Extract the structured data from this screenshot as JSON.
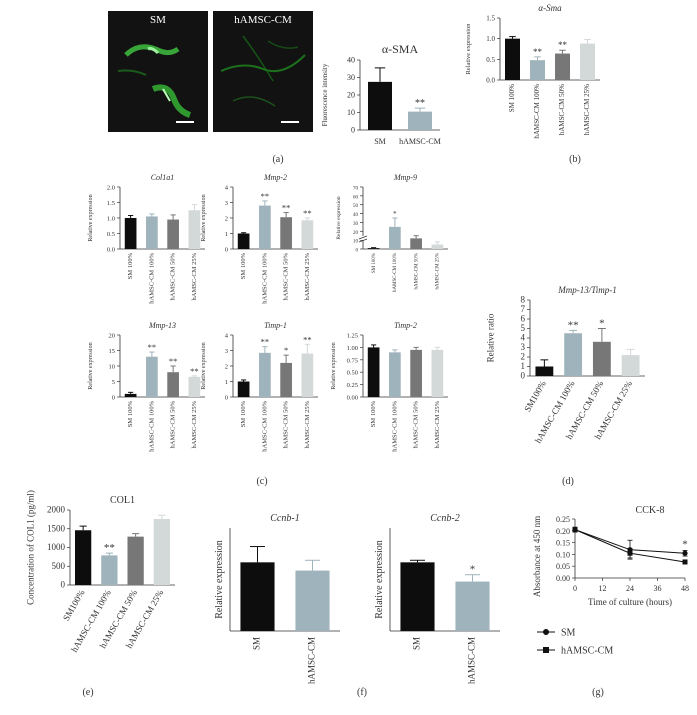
{
  "panel_letters": [
    "(a)",
    "(b)",
    "(c)",
    "(d)",
    "(e)",
    "(f)",
    "(g)"
  ],
  "micrographs": [
    {
      "label": "SM",
      "scale_bar": true
    },
    {
      "label": "hAMSC-CM",
      "scale_bar": true
    }
  ],
  "chart_data": [
    {
      "id": "a",
      "type": "bar",
      "title": "α-SMA",
      "title_style": "plain",
      "categories": [
        "SM",
        "hAMSC-CM"
      ],
      "values": [
        27.5,
        10.5
      ],
      "errors": [
        8,
        2
      ],
      "colors": [
        "#0d0d0d",
        "#9fb3bc"
      ],
      "ylabel": "Fluorescence intensity",
      "ylim": [
        0,
        40
      ],
      "yticks": [
        0,
        10,
        20,
        30,
        40
      ],
      "sig": [
        "",
        "**"
      ],
      "xlabel_rotation": 0
    },
    {
      "id": "b",
      "type": "bar",
      "title": "α-Sma",
      "title_style": "italic",
      "categories": [
        "SM 100%",
        "hAMSC-CM 100%",
        "hAMSC-CM 50%",
        "hAMSC-CM 25%"
      ],
      "values": [
        1.0,
        0.48,
        0.64,
        0.88
      ],
      "errors": [
        0.05,
        0.08,
        0.08,
        0.1
      ],
      "colors": [
        "#0d0d0d",
        "#9fb3bc",
        "#777777",
        "#d3d8d8"
      ],
      "ylabel": "Relative expression",
      "ylim": [
        0,
        1.5
      ],
      "yticks": [
        0.0,
        0.5,
        1.0,
        1.5
      ],
      "sig": [
        "",
        "**",
        "**",
        ""
      ],
      "xlabel_rotation": -90
    },
    {
      "id": "c1",
      "type": "bar",
      "title": "Col1a1",
      "title_style": "italic",
      "categories": [
        "SM 100%",
        "hAMSC-CM 100%",
        "hAMSC-CM 50%",
        "hAMSC-CM 25%"
      ],
      "values": [
        1.0,
        1.05,
        0.95,
        1.25
      ],
      "errors": [
        0.08,
        0.08,
        0.15,
        0.18
      ],
      "colors": [
        "#0d0d0d",
        "#9fb3bc",
        "#777777",
        "#d3d8d8"
      ],
      "ylabel": "Relative expression",
      "ylim": [
        0,
        2.0
      ],
      "yticks": [
        0.0,
        0.5,
        1.0,
        1.5,
        2.0
      ],
      "sig": [
        "",
        "",
        "",
        ""
      ],
      "xlabel_rotation": -90
    },
    {
      "id": "c2",
      "type": "bar",
      "title": "Mmp-2",
      "title_style": "italic",
      "categories": [
        "SM 100%",
        "hAMSC-CM 100%",
        "hAMSC-CM 50%",
        "hAMSC-CM 25%"
      ],
      "values": [
        1.0,
        2.8,
        2.05,
        1.85
      ],
      "errors": [
        0.05,
        0.3,
        0.3,
        0.15
      ],
      "colors": [
        "#0d0d0d",
        "#9fb3bc",
        "#777777",
        "#d3d8d8"
      ],
      "ylabel": "Relative expression",
      "ylim": [
        0,
        4
      ],
      "yticks": [
        0,
        1,
        2,
        3,
        4
      ],
      "sig": [
        "",
        "**",
        "**",
        "**"
      ],
      "xlabel_rotation": -90
    },
    {
      "id": "c3",
      "type": "bar",
      "title": "Mmp-9",
      "title_style": "italic",
      "categories": [
        "SM 100%",
        "hAMSC-CM 100%",
        "hAMSC-CM 50%",
        "hAMSC-CM 25%"
      ],
      "values": [
        1.0,
        25,
        12,
        5
      ],
      "errors": [
        0.5,
        10,
        3,
        3
      ],
      "colors": [
        "#0d0d0d",
        "#9fb3bc",
        "#777777",
        "#d3d8d8"
      ],
      "ylabel": "Relative expression",
      "ylim": [
        0,
        70
      ],
      "yticks": [
        0,
        10,
        20,
        30,
        40,
        50,
        60,
        70
      ],
      "axis_break": true,
      "broken_ytick_labels": [
        "0",
        "1",
        "2"
      ],
      "sig": [
        "",
        "*",
        "",
        ""
      ],
      "xlabel_rotation": -90
    },
    {
      "id": "c4",
      "type": "bar",
      "title": "Mmp-13",
      "title_style": "italic",
      "categories": [
        "SM 100%",
        "hAMSC-CM 100%",
        "hAMSC-CM 50%",
        "hAMSC-CM 25%"
      ],
      "values": [
        1.0,
        13.0,
        8.0,
        6.5
      ],
      "errors": [
        0.5,
        1.5,
        2.0,
        0.3
      ],
      "colors": [
        "#0d0d0d",
        "#9fb3bc",
        "#777777",
        "#d3d8d8"
      ],
      "ylabel": "Relative expression",
      "ylim": [
        0,
        20
      ],
      "yticks": [
        0,
        5,
        10,
        15,
        20
      ],
      "sig": [
        "",
        "**",
        "**",
        "**"
      ],
      "xlabel_rotation": -90
    },
    {
      "id": "c5",
      "type": "bar",
      "title": "Timp-1",
      "title_style": "italic",
      "categories": [
        "SM 100%",
        "hAMSC-CM 100%",
        "hAMSC-CM 50%",
        "hAMSC-CM 25%"
      ],
      "values": [
        1.0,
        2.85,
        2.2,
        2.8
      ],
      "errors": [
        0.1,
        0.4,
        0.5,
        0.6
      ],
      "colors": [
        "#0d0d0d",
        "#9fb3bc",
        "#777777",
        "#d3d8d8"
      ],
      "ylabel": "Relative expression",
      "ylim": [
        0,
        4
      ],
      "yticks": [
        0,
        1,
        2,
        3,
        4
      ],
      "sig": [
        "",
        "**",
        "*",
        "**"
      ],
      "xlabel_rotation": -90
    },
    {
      "id": "c6",
      "type": "bar",
      "title": "Timp-2",
      "title_style": "italic",
      "categories": [
        "SM 100%",
        "hAMSC-CM 100%",
        "hAMSC-CM 50%",
        "hAMSC-CM 25%"
      ],
      "values": [
        1.0,
        0.9,
        0.95,
        0.95
      ],
      "errors": [
        0.05,
        0.05,
        0.05,
        0.05
      ],
      "colors": [
        "#0d0d0d",
        "#9fb3bc",
        "#777777",
        "#d3d8d8"
      ],
      "ylabel": "Relative expression",
      "ylim": [
        0,
        1.25
      ],
      "yticks": [
        0.0,
        0.25,
        0.5,
        0.75,
        1.0,
        1.25
      ],
      "sig": [
        "",
        "",
        "",
        ""
      ],
      "xlabel_rotation": -90
    },
    {
      "id": "d",
      "type": "bar",
      "title": "Mmp-13/Timp-1",
      "title_style": "italic",
      "categories": [
        "SM100%",
        "hAMSC-CM 100%",
        "hAMSC-CM 50%",
        "hAMSC-CM 25%"
      ],
      "values": [
        1.0,
        4.5,
        3.6,
        2.2
      ],
      "errors": [
        0.7,
        0.3,
        1.4,
        0.6
      ],
      "colors": [
        "#0d0d0d",
        "#9fb3bc",
        "#777777",
        "#d3d8d8"
      ],
      "ylabel": "Relative ratio",
      "ylim": [
        0,
        8
      ],
      "yticks": [
        0,
        1,
        2,
        3,
        4,
        5,
        6,
        7,
        8
      ],
      "sig": [
        "",
        "**",
        "*",
        ""
      ],
      "xlabel_rotation": -60
    },
    {
      "id": "e",
      "type": "bar",
      "title": "COL1",
      "title_style": "plain",
      "categories": [
        "SM100%",
        "hAMSC-CM 100%",
        "hAMSC-CM 50%",
        "hAMSC-CM 25%"
      ],
      "values": [
        1460,
        790,
        1290,
        1760
      ],
      "errors": [
        110,
        60,
        80,
        100
      ],
      "colors": [
        "#0d0d0d",
        "#9fb3bc",
        "#777777",
        "#d3d8d8"
      ],
      "ylabel": "Concentration of COL1 (pg/ml)",
      "ylim": [
        0,
        2000
      ],
      "yticks": [
        0,
        500,
        1000,
        1500,
        2000
      ],
      "sig": [
        "",
        "**",
        "",
        ""
      ],
      "xlabel_rotation": -60
    },
    {
      "id": "f1",
      "type": "bar",
      "title": "Ccnb-1",
      "title_style": "italic",
      "categories": [
        "SM",
        "hAMSC-CM"
      ],
      "values": [
        1.0,
        0.88
      ],
      "errors": [
        0.23,
        0.15
      ],
      "colors": [
        "#0d0d0d",
        "#9fb3bc"
      ],
      "ylabel": "Relative expression",
      "ylim": [
        0,
        1.5
      ],
      "yticks": [],
      "sig": [
        "",
        ""
      ],
      "xlabel_rotation": -90
    },
    {
      "id": "f2",
      "type": "bar",
      "title": "Ccnb-2",
      "title_style": "italic",
      "categories": [
        "SM",
        "hAMSC-CM"
      ],
      "values": [
        1.0,
        0.72
      ],
      "errors": [
        0.03,
        0.1
      ],
      "colors": [
        "#0d0d0d",
        "#9fb3bc"
      ],
      "ylabel": "Relative expression",
      "ylim": [
        0,
        1.5
      ],
      "yticks": [],
      "sig": [
        "",
        "*"
      ],
      "xlabel_rotation": -90
    },
    {
      "id": "g",
      "type": "line",
      "title": "CCK-8",
      "x": [
        0,
        24,
        48
      ],
      "xlim": [
        0,
        48
      ],
      "xticks": [
        0,
        12,
        24,
        36,
        48
      ],
      "xlabel": "Time of culture (hours)",
      "ylabel": "Absorbance at 450 nm",
      "ylim": [
        0,
        0.25
      ],
      "yticks": [
        0.0,
        0.05,
        0.1,
        0.15,
        0.2,
        0.25
      ],
      "series": [
        {
          "name": "SM",
          "marker": "circle",
          "values": [
            0.205,
            0.12,
            0.105
          ],
          "errors": [
            0.01,
            0.04,
            0.012
          ]
        },
        {
          "name": "hAMSC-CM",
          "marker": "square",
          "values": [
            0.205,
            0.105,
            0.068
          ],
          "errors": [
            0.01,
            0.02,
            0.008
          ]
        }
      ],
      "sig_at_x": 48,
      "sig": "*"
    }
  ]
}
